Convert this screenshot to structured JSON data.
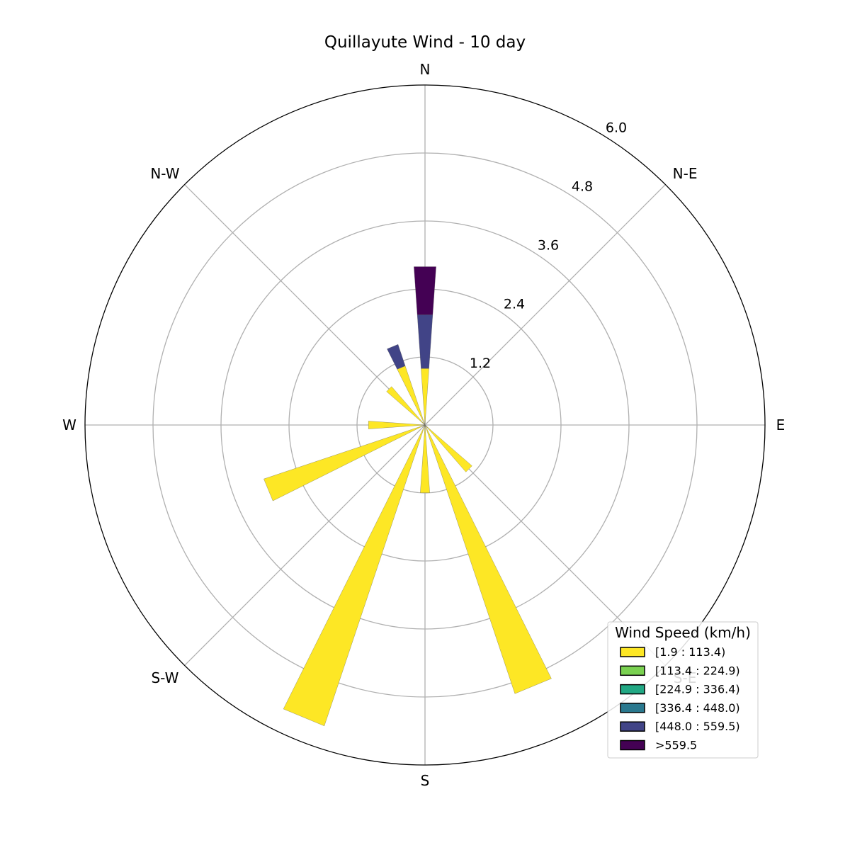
{
  "chart_data": {
    "type": "windrose",
    "title": "Quillayute Wind - 10 day",
    "directions": [
      "N",
      "N-E",
      "E",
      "S-E",
      "S",
      "S-W",
      "W",
      "N-W"
    ],
    "radial_ticks": [
      1.2,
      2.4,
      3.6,
      4.8,
      6.0
    ],
    "radial_tick_labels": [
      "1.2",
      "2.4",
      "3.6",
      "4.8",
      "6.0"
    ],
    "rmax": 6.0,
    "grid": true,
    "legend": {
      "title": "Wind Speed (km/h)",
      "placement": "lower-right"
    },
    "series": [
      {
        "name": "[1.9 : 113.4)",
        "color": "#fde725"
      },
      {
        "name": "[113.4 : 224.9)",
        "color": "#7ad151"
      },
      {
        "name": "[224.9 : 336.4)",
        "color": "#22a884"
      },
      {
        "name": "[336.4 : 448.0)",
        "color": "#2a788e"
      },
      {
        "name": "[448.0 : 559.5)",
        "color": "#414487"
      },
      {
        "name": ">559.5",
        "color": "#440154"
      }
    ],
    "petals": [
      {
        "angle": 0,
        "width": 8,
        "stack": [
          1.0,
          0,
          0,
          0,
          0.95,
          0.85
        ]
      },
      {
        "angle": 22.5,
        "width": 8,
        "stack": [
          0,
          0,
          0,
          0,
          0,
          0
        ]
      },
      {
        "angle": 45,
        "width": 8,
        "stack": [
          0,
          0,
          0,
          0,
          0,
          0
        ]
      },
      {
        "angle": 67.5,
        "width": 8,
        "stack": [
          0,
          0,
          0,
          0,
          0,
          0
        ]
      },
      {
        "angle": 90,
        "width": 8,
        "stack": [
          0,
          0,
          0,
          0,
          0,
          0
        ]
      },
      {
        "angle": 112.5,
        "width": 8,
        "stack": [
          0,
          0,
          0,
          0,
          0,
          0
        ]
      },
      {
        "angle": 135,
        "width": 8,
        "stack": [
          1.1,
          0,
          0,
          0,
          0,
          0
        ]
      },
      {
        "angle": 157.5,
        "width": 8,
        "stack": [
          5.0,
          0,
          0,
          0,
          0,
          0
        ]
      },
      {
        "angle": 180,
        "width": 8,
        "stack": [
          1.2,
          0,
          0,
          0,
          0,
          0
        ]
      },
      {
        "angle": 202.5,
        "width": 8,
        "stack": [
          5.6,
          0,
          0,
          0,
          0,
          0
        ]
      },
      {
        "angle": 225,
        "width": 8,
        "stack": [
          0,
          0,
          0,
          0,
          0,
          0
        ]
      },
      {
        "angle": 247.5,
        "width": 8,
        "stack": [
          3.0,
          0,
          0,
          0,
          0,
          0
        ]
      },
      {
        "angle": 270,
        "width": 8,
        "stack": [
          1.0,
          0,
          0,
          0,
          0,
          0
        ]
      },
      {
        "angle": 292.5,
        "width": 8,
        "stack": [
          0,
          0,
          0,
          0,
          0,
          0
        ]
      },
      {
        "angle": 315,
        "width": 8,
        "stack": [
          0.9,
          0,
          0,
          0,
          0,
          0
        ]
      },
      {
        "angle": 337.5,
        "width": 8,
        "stack": [
          1.1,
          0,
          0,
          0,
          0.4,
          0
        ]
      }
    ]
  }
}
